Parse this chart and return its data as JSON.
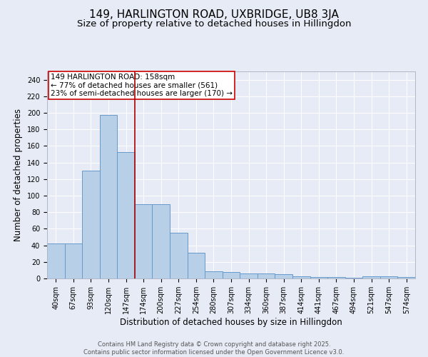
{
  "title_line1": "149, HARLINGTON ROAD, UXBRIDGE, UB8 3JA",
  "title_line2": "Size of property relative to detached houses in Hillingdon",
  "xlabel": "Distribution of detached houses by size in Hillingdon",
  "ylabel": "Number of detached properties",
  "categories": [
    "40sqm",
    "67sqm",
    "93sqm",
    "120sqm",
    "147sqm",
    "174sqm",
    "200sqm",
    "227sqm",
    "254sqm",
    "280sqm",
    "307sqm",
    "334sqm",
    "360sqm",
    "387sqm",
    "414sqm",
    "441sqm",
    "467sqm",
    "494sqm",
    "521sqm",
    "547sqm",
    "574sqm"
  ],
  "values": [
    42,
    42,
    130,
    197,
    153,
    90,
    90,
    55,
    31,
    9,
    8,
    6,
    6,
    5,
    3,
    2,
    2,
    1,
    3,
    3,
    2
  ],
  "bar_color": "#b8cfe8",
  "bar_edge_color": "#6699cc",
  "background_color": "#e6ebf5",
  "grid_color": "#ffffff",
  "vline_x": 4.5,
  "vline_color": "#aa0000",
  "annotation_text": "149 HARLINGTON ROAD: 158sqm\n← 77% of detached houses are smaller (561)\n23% of semi-detached houses are larger (170) →",
  "annotation_box_edge": "#cc0000",
  "ylim": [
    0,
    250
  ],
  "yticks": [
    0,
    20,
    40,
    60,
    80,
    100,
    120,
    140,
    160,
    180,
    200,
    220,
    240
  ],
  "footnote": "Contains HM Land Registry data © Crown copyright and database right 2025.\nContains public sector information licensed under the Open Government Licence v3.0.",
  "title_fontsize": 11,
  "subtitle_fontsize": 9.5,
  "tick_fontsize": 7,
  "label_fontsize": 8.5,
  "annotation_fontsize": 7.5
}
